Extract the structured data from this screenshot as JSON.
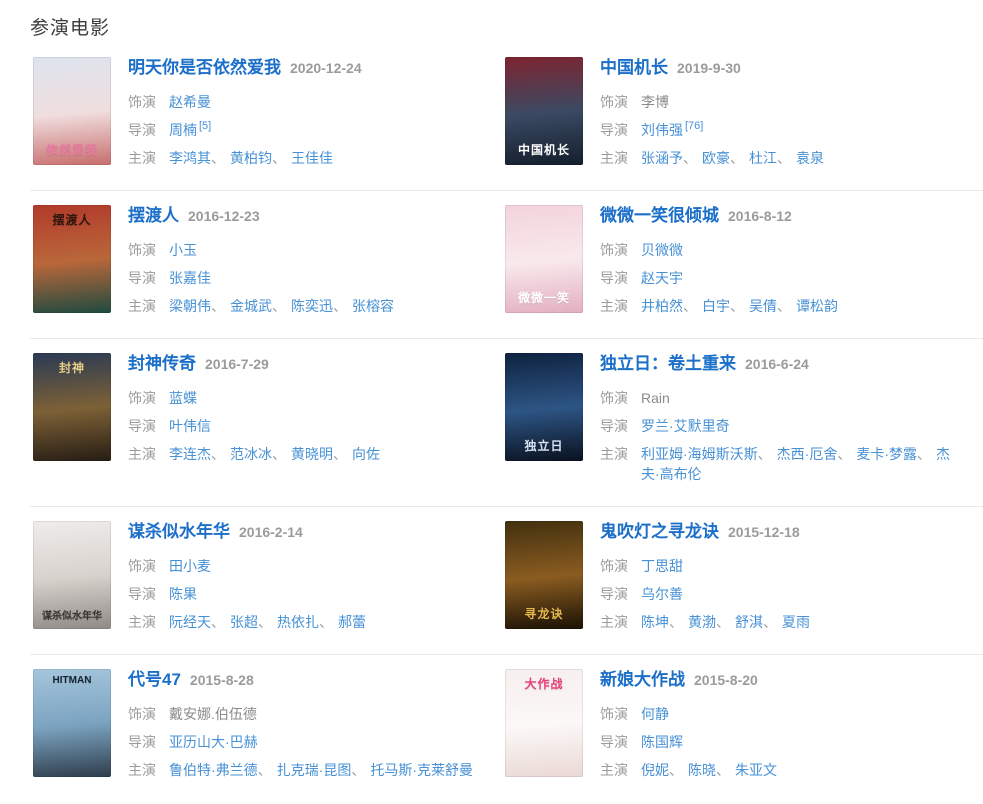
{
  "section": {
    "title": "参演电影"
  },
  "labels": {
    "role": "饰演",
    "director": "导演",
    "starring": "主演"
  },
  "separator": "、",
  "colors": {
    "title_link": "#1b6fc9",
    "link": "#4791d6",
    "muted_text": "#9b9b9b",
    "plain_text": "#8b8b8b",
    "divider": "#e9e9e9"
  },
  "movies": [
    {
      "title": "明天你是否依然爱我",
      "date": "2020-12-24",
      "role": "赵希曼",
      "role_link": true,
      "director": "周楠",
      "director_ref": "[5]",
      "starring": [
        "李鸿其",
        "黄柏钧",
        "王佳佳"
      ],
      "poster": {
        "colors": [
          "#dde4ee",
          "#f0dede",
          "#c86d6d"
        ],
        "label": "依然爱我",
        "label_color": "#e87a9f",
        "label_pos": "bottom"
      }
    },
    {
      "title": "中国机长",
      "date": "2019-9-30",
      "role": "李博",
      "role_link": false,
      "director": "刘伟强",
      "director_ref": "[76]",
      "starring": [
        "张涵予",
        "欧豪",
        "杜江",
        "袁泉"
      ],
      "poster": {
        "colors": [
          "#7e2430",
          "#3a4a63",
          "#141e2c"
        ],
        "label": "中国机长",
        "label_color": "#ffffff",
        "label_pos": "bottom"
      }
    },
    {
      "title": "摆渡人",
      "date": "2016-12-23",
      "role": "小玉",
      "role_link": true,
      "director": "张嘉佳",
      "director_ref": "",
      "starring": [
        "梁朝伟",
        "金城武",
        "陈奕迅",
        "张榕容"
      ],
      "poster": {
        "colors": [
          "#b23a2b",
          "#b9673a",
          "#1f4a40"
        ],
        "label": "摆渡人",
        "label_color": "#31150e",
        "label_pos": "top"
      }
    },
    {
      "title": "微微一笑很倾城",
      "date": "2016-8-12",
      "role": "贝微微",
      "role_link": true,
      "director": "赵天宇",
      "director_ref": "",
      "starring": [
        "井柏然",
        "白宇",
        "吴倩",
        "谭松韵"
      ],
      "poster": {
        "colors": [
          "#f3d3dc",
          "#f8e9ec",
          "#e3aec1"
        ],
        "label": "微微一笑",
        "label_color": "#ffffff",
        "label_pos": "bottom"
      }
    },
    {
      "title": "封神传奇",
      "date": "2016-7-29",
      "role": "蓝蝶",
      "role_link": true,
      "director": "叶伟信",
      "director_ref": "",
      "starring": [
        "李连杰",
        "范冰冰",
        "黄晓明",
        "向佐"
      ],
      "poster": {
        "colors": [
          "#2a3a54",
          "#7d6136",
          "#261d14"
        ],
        "label": "封神",
        "label_color": "#e3cd8a",
        "label_pos": "top"
      }
    },
    {
      "title": "独立日：卷土重来",
      "date": "2016-6-24",
      "role": "Rain",
      "role_link": false,
      "director": "罗兰·艾默里奇",
      "director_ref": "",
      "starring": [
        "利亚姆·海姆斯沃斯",
        "杰西·厄舍",
        "麦卡·梦露",
        "杰夫·高布伦"
      ],
      "poster": {
        "colors": [
          "#0e2240",
          "#2d5584",
          "#0a1120"
        ],
        "label": "独立日",
        "label_color": "#d8e2f0",
        "label_pos": "bottom"
      }
    },
    {
      "title": "谋杀似水年华",
      "date": "2016-2-14",
      "role": "田小麦",
      "role_link": true,
      "director": "陈果",
      "director_ref": "",
      "starring": [
        "阮经天",
        "张超",
        "热依扎",
        "郝蕾"
      ],
      "poster": {
        "colors": [
          "#efecea",
          "#d8d2cd",
          "#8f8a85"
        ],
        "label": "谋杀似水年华",
        "label_color": "#3a3430",
        "label_pos": "bottom"
      }
    },
    {
      "title": "鬼吹灯之寻龙诀",
      "date": "2015-12-18",
      "role": "丁思甜",
      "role_link": true,
      "director": "乌尔善",
      "director_ref": "",
      "starring": [
        "陈坤",
        "黄渤",
        "舒淇",
        "夏雨"
      ],
      "poster": {
        "colors": [
          "#42300f",
          "#8a5c20",
          "#1a1105"
        ],
        "label": "寻龙诀",
        "label_color": "#e5b84e",
        "label_pos": "bottom"
      }
    },
    {
      "title": "代号47",
      "date": "2015-8-28",
      "role": "戴安娜.伯伍德",
      "role_link": false,
      "director": "亚历山大·巴赫",
      "director_ref": "",
      "starring": [
        "鲁伯特·弗兰德",
        "扎克瑞·昆图",
        "托马斯·克莱舒曼"
      ],
      "poster": {
        "colors": [
          "#a5c6dd",
          "#7ba3c0",
          "#2e3d4b"
        ],
        "label": "HITMAN",
        "label_color": "#16242f",
        "label_pos": "top"
      }
    },
    {
      "title": "新娘大作战",
      "date": "2015-8-20",
      "role": "何静",
      "role_link": true,
      "director": "陈国辉",
      "director_ref": "",
      "starring": [
        "倪妮",
        "陈晓",
        "朱亚文"
      ],
      "poster": {
        "colors": [
          "#f6efee",
          "#fbf8f7",
          "#ead8d4"
        ],
        "label": "大作战",
        "label_color": "#e8417e",
        "label_pos": "top"
      }
    }
  ]
}
